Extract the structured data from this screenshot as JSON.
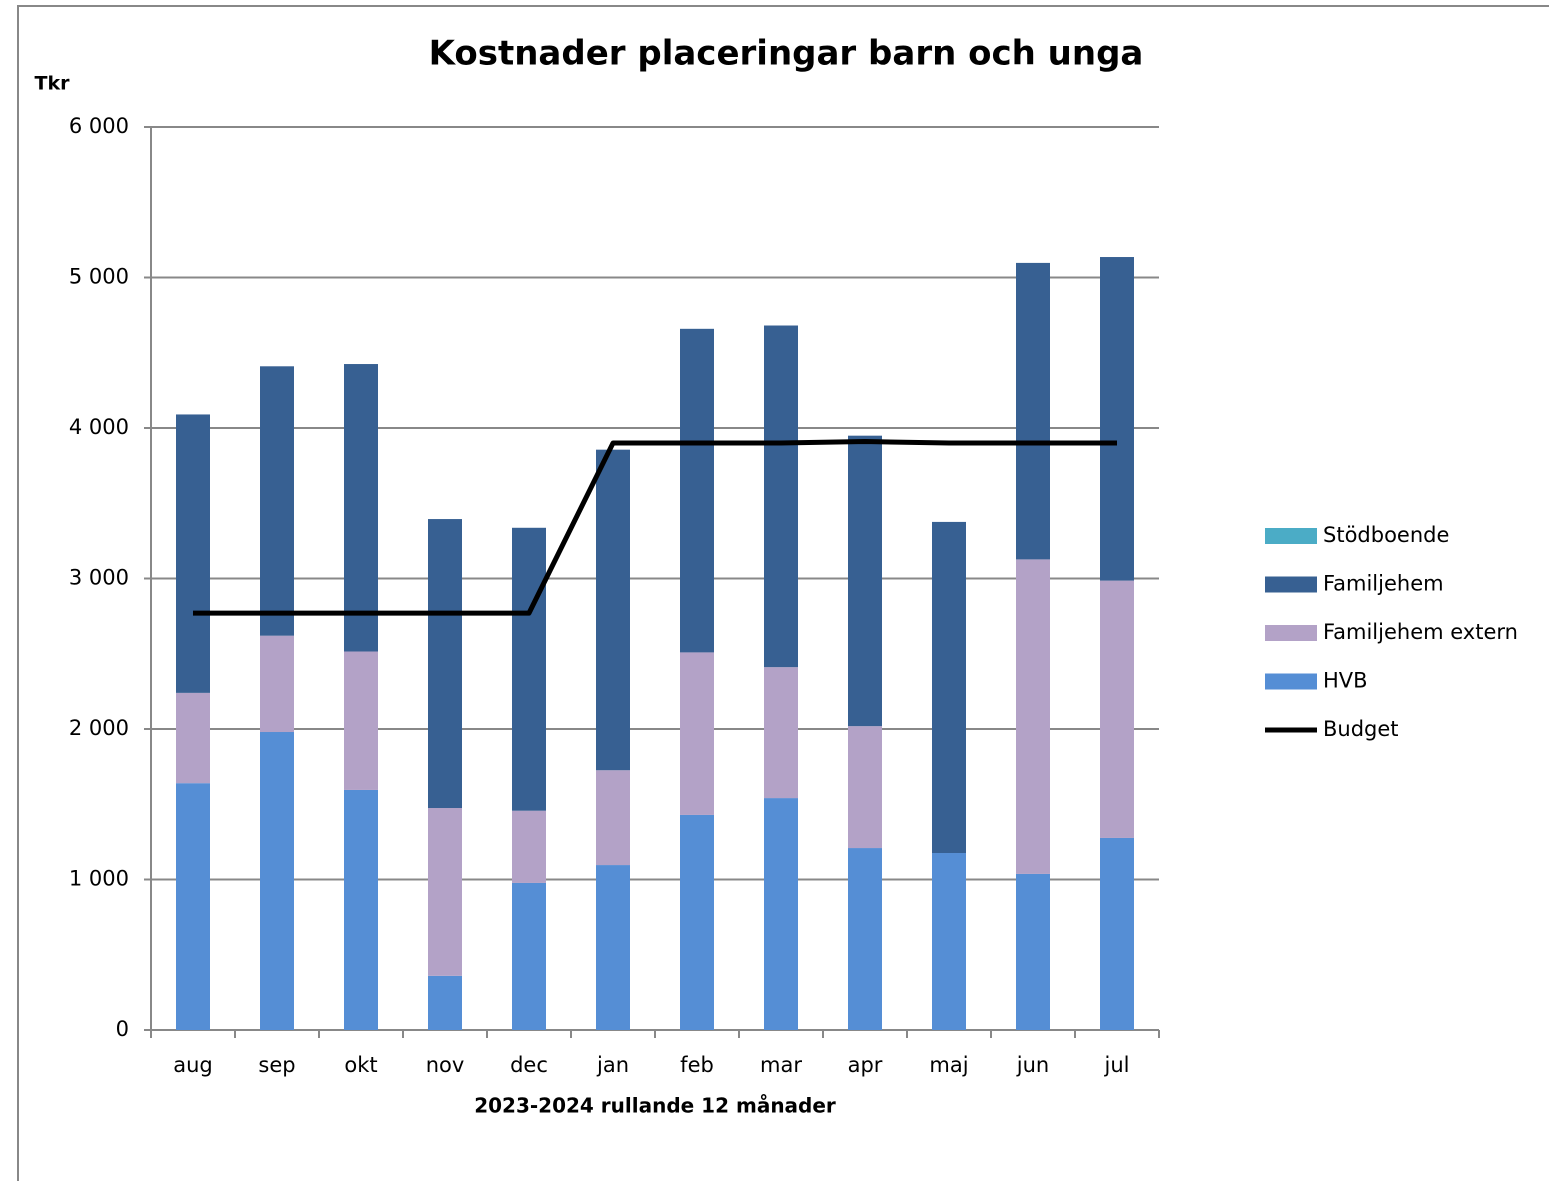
{
  "chart_data": {
    "type": "bar",
    "stacked": true,
    "title": "Kostnader placeringar barn och unga",
    "y_label": "Tkr",
    "x_label": "2023-2024 rullande 12 månader",
    "categories": [
      "aug",
      "sep",
      "okt",
      "nov",
      "dec",
      "jan",
      "feb",
      "mar",
      "apr",
      "maj",
      "jun",
      "jul"
    ],
    "series": [
      {
        "name": "HVB",
        "color": "#558ed5",
        "values": [
          1640,
          1980,
          1595,
          360,
          977,
          1096,
          1429,
          1541,
          1209,
          1176,
          1037,
          1276
        ]
      },
      {
        "name": "Familjehem extern",
        "color": "#b3a2c7",
        "values": [
          600,
          640,
          920,
          1115,
          480,
          630,
          1080,
          870,
          810,
          0,
          2090,
          1710
        ]
      },
      {
        "name": "Familjehem",
        "color": "#376092",
        "values": [
          1850,
          1790,
          1910,
          1920,
          1880,
          2130,
          2150,
          2270,
          1930,
          2200,
          1970,
          2150
        ]
      },
      {
        "name": "Stödboende",
        "color": "#4bacc6",
        "values": [
          0,
          0,
          0,
          0,
          0,
          0,
          0,
          0,
          0,
          0,
          0,
          0
        ]
      },
      {
        "name": "Budget",
        "type": "line",
        "color": "#000000",
        "values": [
          2770,
          2770,
          2770,
          2770,
          2770,
          3900,
          3900,
          3900,
          3910,
          3900,
          3900,
          3900
        ]
      }
    ],
    "ylim": [
      0,
      6000
    ],
    "yticks": [
      0,
      {
        "value": 1000,
        "label": "1 000"
      },
      {
        "value": 2000,
        "label": "2 000"
      },
      {
        "value": 3000,
        "label": "3 000"
      },
      {
        "value": 4000,
        "label": "4 000"
      },
      {
        "value": 5000,
        "label": "5 000"
      },
      {
        "value": 6000,
        "label": "6 000"
      }
    ],
    "grid": true,
    "legend": "right"
  }
}
